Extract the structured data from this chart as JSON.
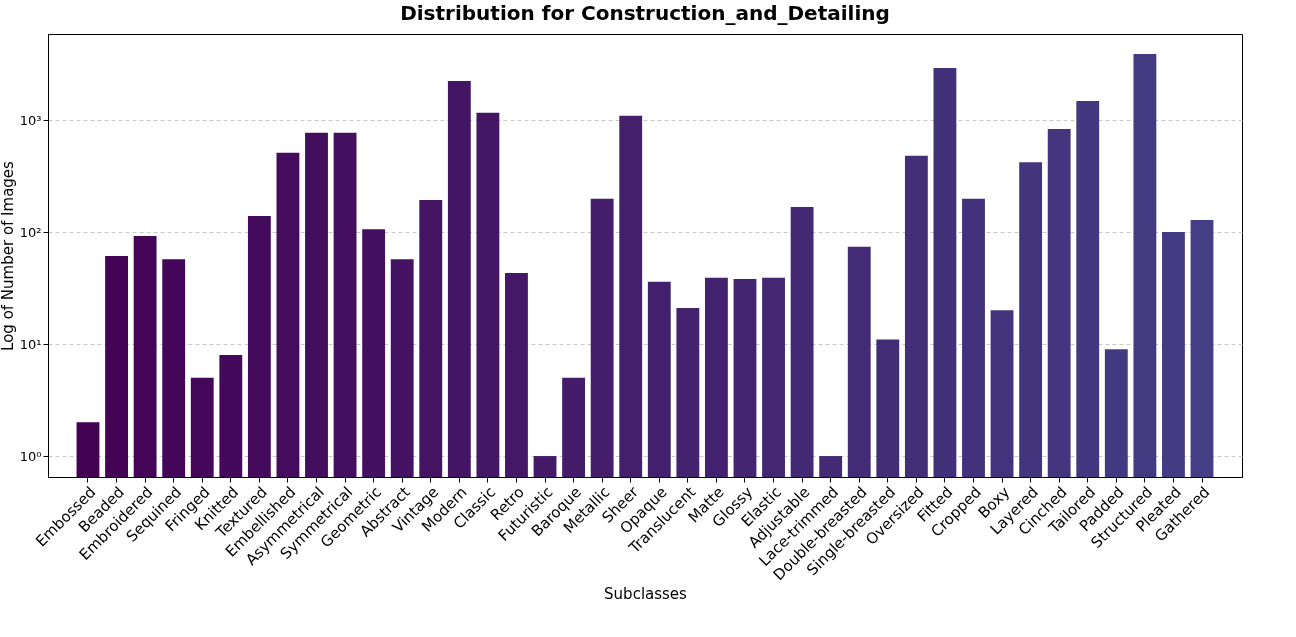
{
  "chart_data": {
    "type": "bar",
    "title": "Distribution for Construction_and_Detailing",
    "xlabel": "Subclasses",
    "ylabel": "Log of Number of Images",
    "categories": [
      "Embossed",
      "Beaded",
      "Embroidered",
      "Sequined",
      "Fringed",
      "Knitted",
      "Textured",
      "Embellished",
      "Asymmetrical",
      "Symmetrical",
      "Geometric",
      "Abstract",
      "Vintage",
      "Modern",
      "Classic",
      "Retro",
      "Futuristic",
      "Baroque",
      "Metallic",
      "Sheer",
      "Opaque",
      "Translucent",
      "Matte",
      "Glossy",
      "Elastic",
      "Adjustable",
      "Lace-trimmed",
      "Double-breasted",
      "Single-breasted",
      "Oversized",
      "Fitted",
      "Cropped",
      "Boxy",
      "Layered",
      "Cinched",
      "Tailored",
      "Padded",
      "Structured",
      "Pleated",
      "Gathered"
    ],
    "values": [
      2,
      61,
      92,
      57,
      5,
      8,
      139,
      510,
      770,
      770,
      106,
      57,
      193,
      2230,
      1160,
      43,
      1,
      5,
      198,
      1090,
      36,
      21,
      39,
      38,
      39,
      167,
      1,
      74,
      11,
      480,
      2910,
      198,
      20,
      420,
      830,
      1480,
      9,
      3880,
      100,
      128
    ],
    "colors": [
      "#440154",
      "#440355",
      "#440457",
      "#440658",
      "#440759",
      "#44095a",
      "#440a5c",
      "#440c5d",
      "#440e5e",
      "#440f5f",
      "#441161",
      "#441262",
      "#441463",
      "#441564",
      "#441766",
      "#441867",
      "#441a68",
      "#441c69",
      "#441d6b",
      "#441f6c",
      "#43206d",
      "#43226e",
      "#432370",
      "#432571",
      "#432772",
      "#432873",
      "#432a75",
      "#432b76",
      "#432d77",
      "#432e78",
      "#43307a",
      "#43317b",
      "#43337c",
      "#43357d",
      "#43367f",
      "#433880",
      "#433981",
      "#433b82",
      "#433c84",
      "#433e85"
    ],
    "log": "y",
    "ylim": [
      0.65,
      5860
    ],
    "yticks": [
      {
        "value": 1,
        "label": "10⁰"
      },
      {
        "value": 10,
        "label": "10¹"
      },
      {
        "value": 100,
        "label": "10²"
      },
      {
        "value": 1000,
        "label": "10³"
      }
    ],
    "grid": "y"
  }
}
